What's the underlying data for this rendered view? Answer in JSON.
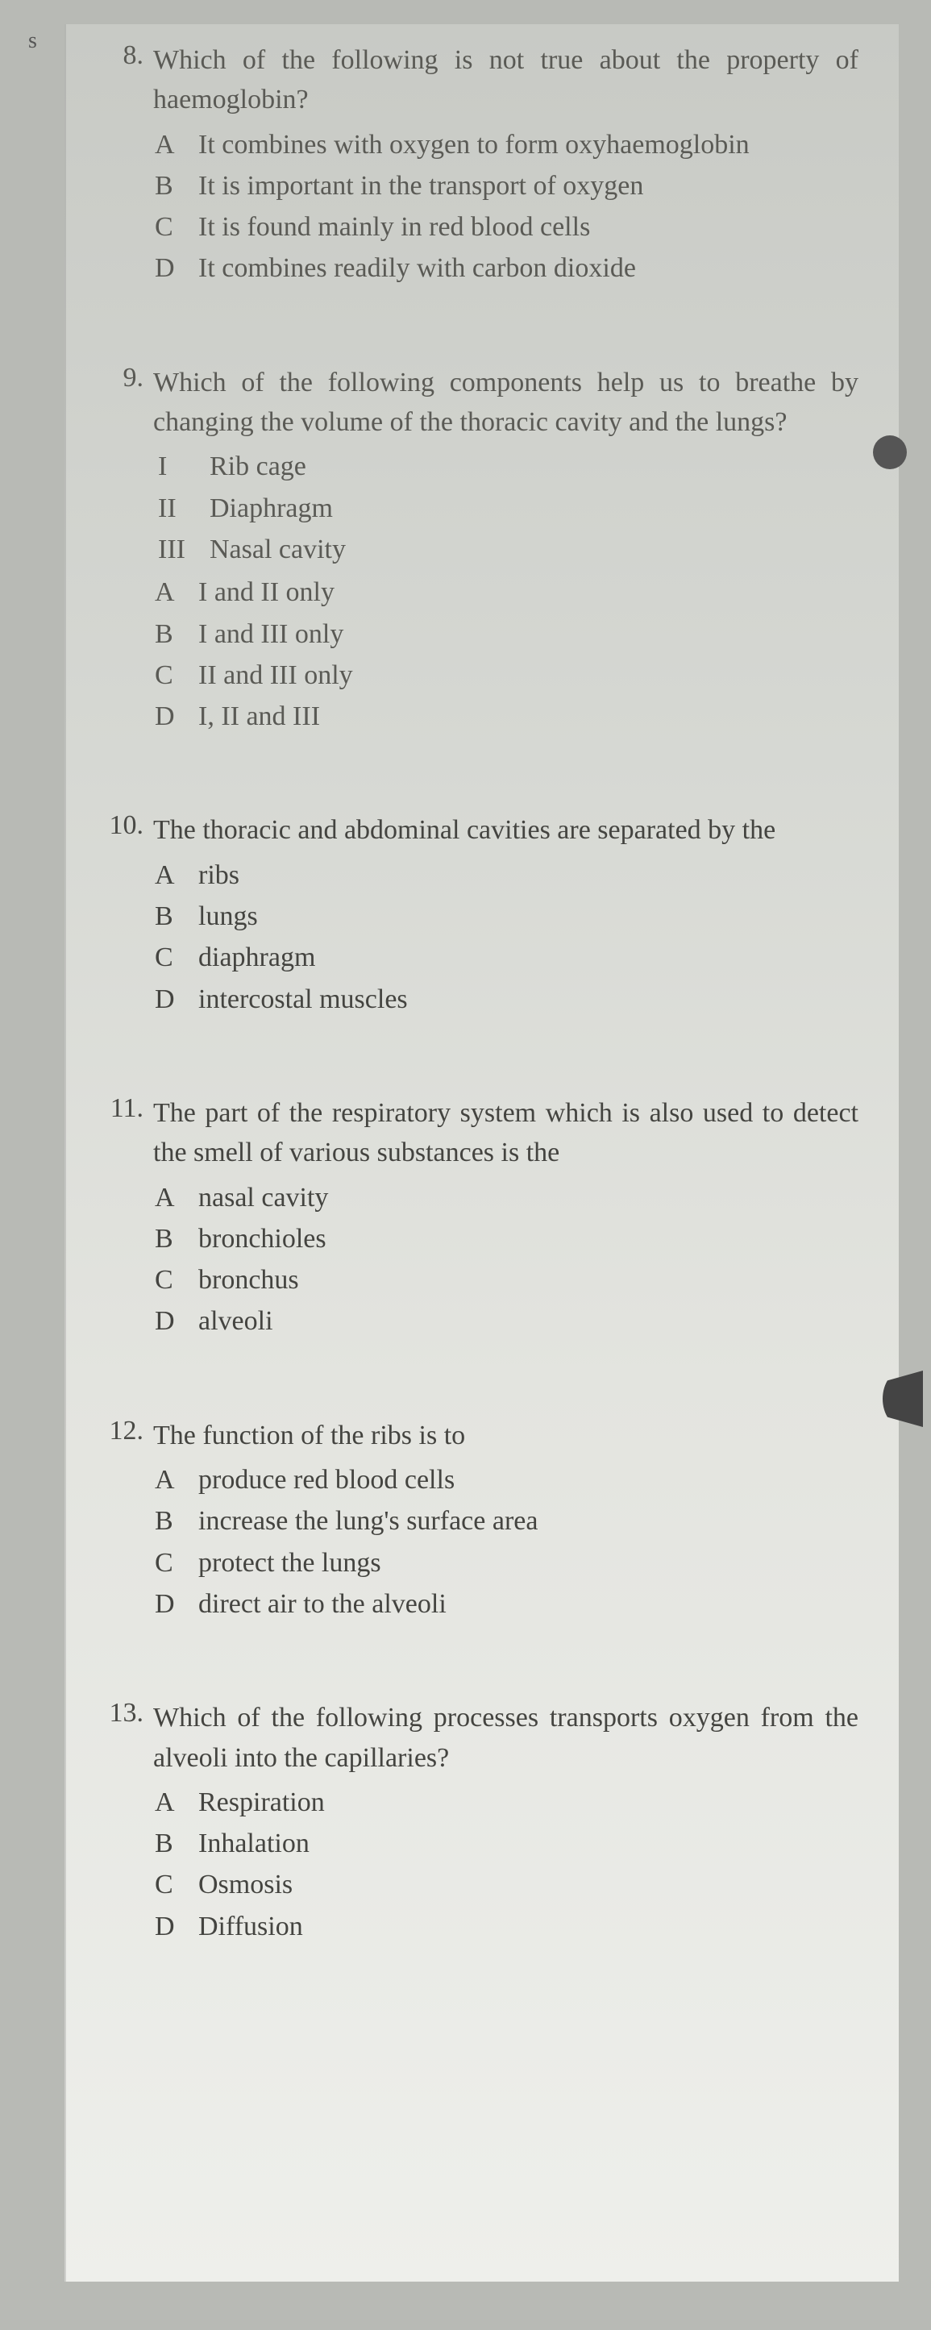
{
  "leftEdge": "s",
  "questions": [
    {
      "num": "8.",
      "stem": "Which of the following is not true about the property of haemoglobin?",
      "roman": [],
      "options": [
        {
          "label": "A",
          "text": "It combines with oxygen to form oxyhaemoglobin"
        },
        {
          "label": "B",
          "text": "It is important in the transport of oxygen"
        },
        {
          "label": "C",
          "text": "It is found mainly in red blood cells"
        },
        {
          "label": "D",
          "text": "It combines readily with carbon dioxide"
        }
      ]
    },
    {
      "num": "9.",
      "stem": "Which of the following components help us to breathe by changing the volume of the thoracic cavity and the lungs?",
      "roman": [
        {
          "label": "I",
          "text": "Rib cage"
        },
        {
          "label": "II",
          "text": "Diaphragm"
        },
        {
          "label": "III",
          "text": "Nasal cavity"
        }
      ],
      "options": [
        {
          "label": "A",
          "text": "I and II only"
        },
        {
          "label": "B",
          "text": "I and III only"
        },
        {
          "label": "C",
          "text": "II and III only"
        },
        {
          "label": "D",
          "text": "I, II and III"
        }
      ]
    },
    {
      "num": "10.",
      "stem": "The thoracic and abdominal cavities are separated by the",
      "roman": [],
      "options": [
        {
          "label": "A",
          "text": "ribs"
        },
        {
          "label": "B",
          "text": "lungs"
        },
        {
          "label": "C",
          "text": "diaphragm"
        },
        {
          "label": "D",
          "text": "intercostal muscles"
        }
      ]
    },
    {
      "num": "11.",
      "stem": "The part of the respiratory system which is also used to detect the smell of various substances is the",
      "roman": [],
      "options": [
        {
          "label": "A",
          "text": "nasal cavity"
        },
        {
          "label": "B",
          "text": "bronchioles"
        },
        {
          "label": "C",
          "text": "bronchus"
        },
        {
          "label": "D",
          "text": "alveoli"
        }
      ]
    },
    {
      "num": "12.",
      "stem": "The function of the ribs is to",
      "roman": [],
      "options": [
        {
          "label": "A",
          "text": "produce red blood cells"
        },
        {
          "label": "B",
          "text": "increase the lung's surface area"
        },
        {
          "label": "C",
          "text": "protect the lungs"
        },
        {
          "label": "D",
          "text": "direct air to the alveoli"
        }
      ]
    },
    {
      "num": "13.",
      "stem": "Which of the following processes transports oxygen from the alveoli into the capillaries?",
      "roman": [],
      "options": [
        {
          "label": "A",
          "text": "Respiration"
        },
        {
          "label": "B",
          "text": "Inhalation"
        },
        {
          "label": "C",
          "text": "Osmosis"
        },
        {
          "label": "D",
          "text": "Diffusion"
        }
      ]
    }
  ]
}
